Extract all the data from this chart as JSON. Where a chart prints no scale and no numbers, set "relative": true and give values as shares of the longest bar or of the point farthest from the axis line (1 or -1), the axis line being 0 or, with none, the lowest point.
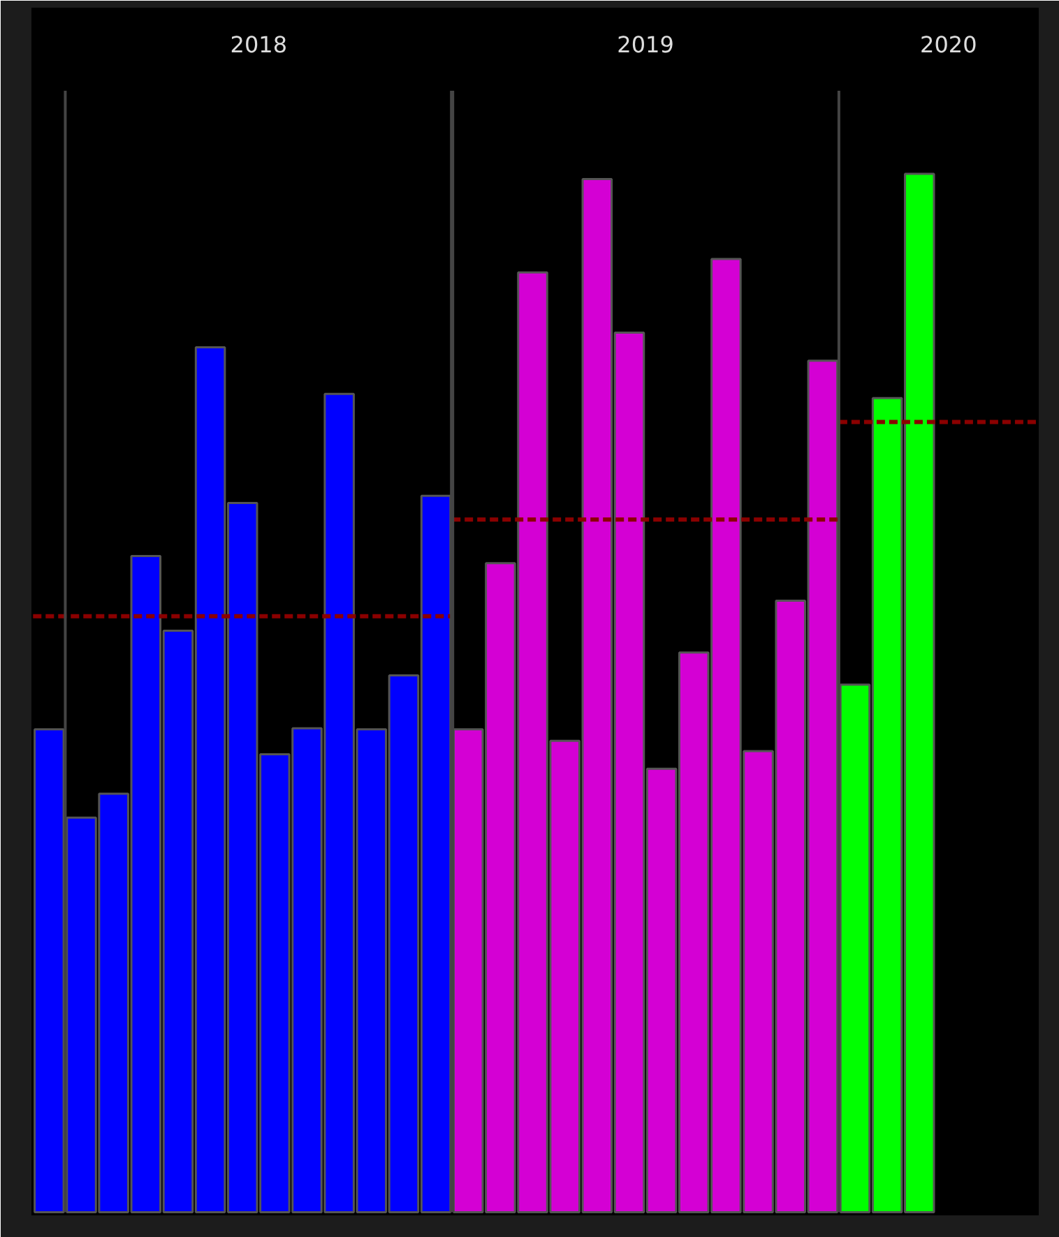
{
  "chart_data": {
    "type": "bar",
    "relative": true,
    "categories": [
      null,
      null,
      null,
      null,
      null,
      null,
      null,
      null,
      null,
      null,
      null,
      null,
      null,
      null,
      null,
      null,
      null,
      null,
      null,
      null,
      null,
      null,
      null,
      null,
      null,
      null,
      null,
      null
    ],
    "values": [
      0.465,
      0.38,
      0.403,
      0.632,
      0.56,
      0.833,
      0.683,
      0.441,
      0.466,
      0.788,
      0.465,
      0.517,
      0.69,
      0.465,
      0.625,
      0.905,
      0.454,
      0.995,
      0.847,
      0.427,
      0.539,
      0.918,
      0.444,
      0.589,
      0.82,
      0.508,
      0.784,
      1.0
    ],
    "colors": [
      "#0000ff",
      "#0000ff",
      "#0000ff",
      "#0000ff",
      "#0000ff",
      "#0000ff",
      "#0000ff",
      "#0000ff",
      "#0000ff",
      "#0000ff",
      "#0000ff",
      "#0000ff",
      "#0000ff",
      "#d400d4",
      "#d400d4",
      "#d400d4",
      "#d400d4",
      "#d400d4",
      "#d400d4",
      "#d400d4",
      "#d400d4",
      "#d400d4",
      "#d400d4",
      "#d400d4",
      "#d400d4",
      "#00ff00",
      "#00ff00",
      "#00ff00"
    ],
    "ref_lines": [
      {
        "axis": "y",
        "value": 0.574,
        "color": "#8b0000",
        "line_style": "dashed"
      },
      {
        "axis": "y",
        "value": 0.667,
        "color": "#8b0000",
        "line_style": "dashed"
      },
      {
        "axis": "y",
        "value": 0.761,
        "color": "#8b0000",
        "line_style": "dashed"
      }
    ],
    "annotations": [
      "2018",
      "2019",
      "2020"
    ]
  }
}
